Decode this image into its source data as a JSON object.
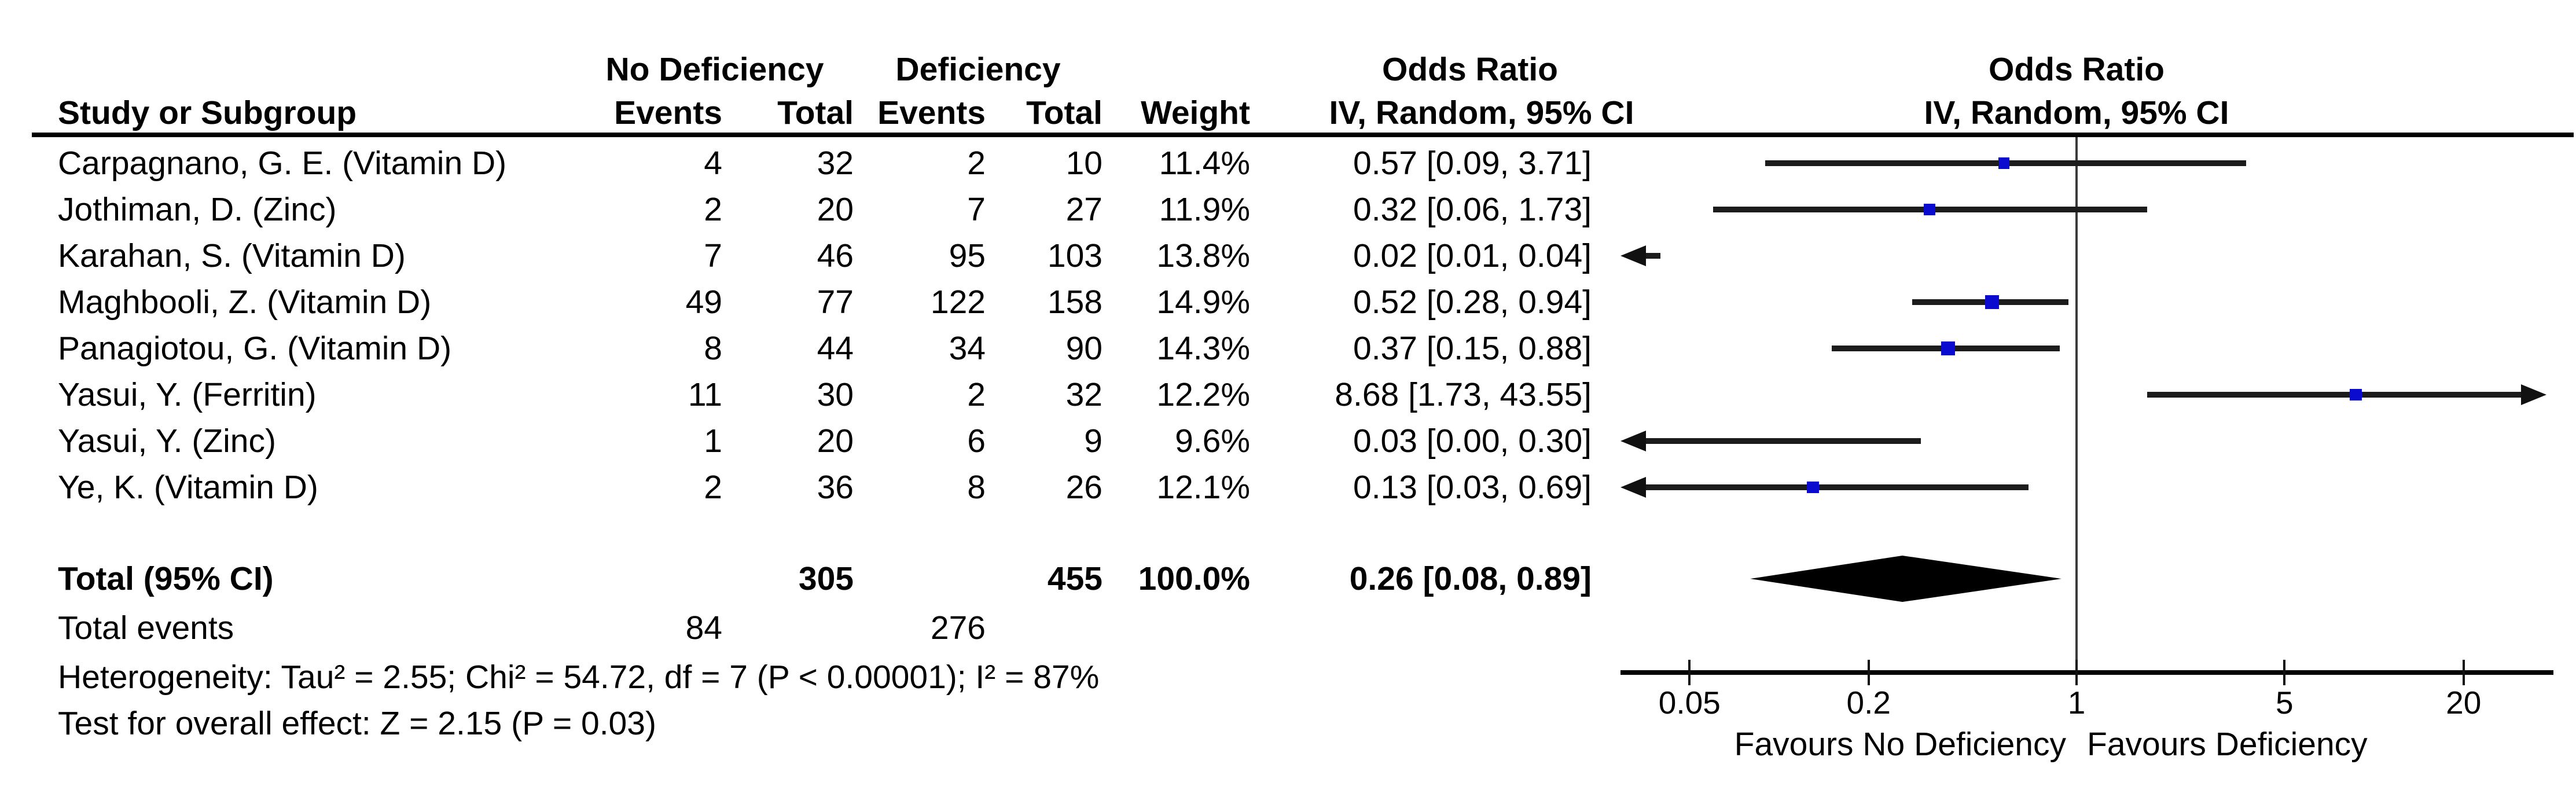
{
  "chart_data": {
    "type": "forest",
    "effect_measure": "Odds Ratio",
    "columns": {
      "study": "Study or Subgroup",
      "group1": "No Deficiency",
      "group2": "Deficiency",
      "events": "Events",
      "total": "Total",
      "weight": "Weight",
      "or_header": "Odds Ratio",
      "method": "IV, Random, 95% CI"
    },
    "studies": [
      {
        "label": "Carpagnano, G. E. (Vitamin D)",
        "events1": 4,
        "total1": 32,
        "events2": 2,
        "total2": 10,
        "weight": "11.4%",
        "ci_text": "0.57 [0.09, 3.71]",
        "or": 0.57,
        "lo": 0.09,
        "hi": 3.71
      },
      {
        "label": "Jothiman, D. (Zinc)",
        "events1": 2,
        "total1": 20,
        "events2": 7,
        "total2": 27,
        "weight": "11.9%",
        "ci_text": "0.32 [0.06, 1.73]",
        "or": 0.32,
        "lo": 0.06,
        "hi": 1.73
      },
      {
        "label": "Karahan, S. (Vitamin D)",
        "events1": 7,
        "total1": 46,
        "events2": 95,
        "total2": 103,
        "weight": "13.8%",
        "ci_text": "0.02 [0.01, 0.04]",
        "or": 0.02,
        "lo": 0.01,
        "hi": 0.04
      },
      {
        "label": "Maghbooli, Z. (Vitamin D)",
        "events1": 49,
        "total1": 77,
        "events2": 122,
        "total2": 158,
        "weight": "14.9%",
        "ci_text": "0.52 [0.28, 0.94]",
        "or": 0.52,
        "lo": 0.28,
        "hi": 0.94
      },
      {
        "label": "Panagiotou, G. (Vitamin D)",
        "events1": 8,
        "total1": 44,
        "events2": 34,
        "total2": 90,
        "weight": "14.3%",
        "ci_text": "0.37 [0.15, 0.88]",
        "or": 0.37,
        "lo": 0.15,
        "hi": 0.88
      },
      {
        "label": "Yasui, Y. (Ferritin)",
        "events1": 11,
        "total1": 30,
        "events2": 2,
        "total2": 32,
        "weight": "12.2%",
        "ci_text": "8.68 [1.73, 43.55]",
        "or": 8.68,
        "lo": 1.73,
        "hi": 43.55
      },
      {
        "label": "Yasui, Y. (Zinc)",
        "events1": 1,
        "total1": 20,
        "events2": 6,
        "total2": 9,
        "weight": "9.6%",
        "ci_text": "0.03 [0.00, 0.30]",
        "or": 0.03,
        "lo": 0.0,
        "hi": 0.3
      },
      {
        "label": "Ye, K. (Vitamin D)",
        "events1": 2,
        "total1": 36,
        "events2": 8,
        "total2": 26,
        "weight": "12.1%",
        "ci_text": "0.13 [0.03, 0.69]",
        "or": 0.13,
        "lo": 0.03,
        "hi": 0.69
      }
    ],
    "total": {
      "label": "Total (95% CI)",
      "total1": 305,
      "total2": 455,
      "weight": "100.0%",
      "ci_text": "0.26 [0.08, 0.89]",
      "or": 0.26,
      "lo": 0.08,
      "hi": 0.89
    },
    "total_events": {
      "label": "Total events",
      "events1": 84,
      "events2": 276
    },
    "heterogeneity": "Heterogeneity: Tau² = 2.55; Chi² = 54.72, df = 7 (P < 0.00001); I² = 87%",
    "overall_effect": "Test for overall effect: Z = 2.15 (P = 0.03)",
    "axis": {
      "scale": "log",
      "null_value": 1,
      "ticks": [
        {
          "v": 0.05,
          "label": "0.05"
        },
        {
          "v": 0.2,
          "label": "0.2"
        },
        {
          "v": 1,
          "label": "1"
        },
        {
          "v": 5,
          "label": "5"
        },
        {
          "v": 20,
          "label": "20"
        }
      ],
      "favours_left": "Favours No Deficiency",
      "favours_right": "Favours Deficiency"
    },
    "colors": {
      "square": "#0b0bd0",
      "line": "#1c1c1c",
      "diamond": "#000000",
      "text": "#000000"
    }
  }
}
